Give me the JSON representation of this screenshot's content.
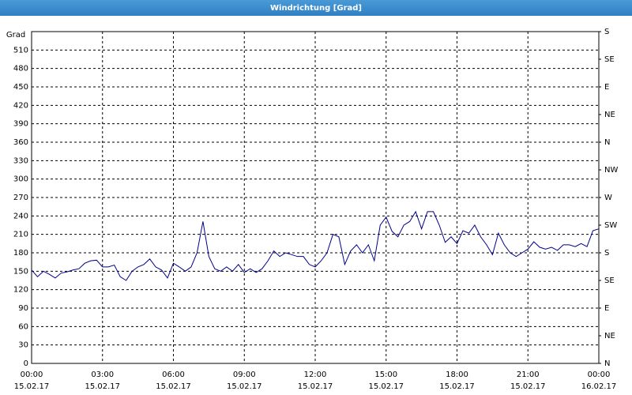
{
  "chart_data": {
    "type": "line",
    "title": "Windrichtung [Grad]",
    "y_label": "Grad",
    "x": [
      0,
      0.25,
      0.5,
      0.75,
      1,
      1.25,
      1.5,
      1.75,
      2,
      2.25,
      2.5,
      2.75,
      3,
      3.25,
      3.5,
      3.75,
      4,
      4.25,
      4.5,
      4.75,
      5,
      5.25,
      5.5,
      5.75,
      6,
      6.25,
      6.5,
      6.75,
      7,
      7.25,
      7.5,
      7.75,
      8,
      8.25,
      8.5,
      8.75,
      9,
      9.25,
      9.5,
      9.75,
      10,
      10.25,
      10.5,
      10.75,
      11,
      11.25,
      11.5,
      11.75,
      12,
      12.25,
      12.5,
      12.75,
      13,
      13.25,
      13.5,
      13.75,
      14,
      14.25,
      14.5,
      14.75,
      15,
      15.25,
      15.5,
      15.75,
      16,
      16.25,
      16.5,
      16.75,
      17,
      17.25,
      17.5,
      17.75,
      18,
      18.25,
      18.5,
      18.75,
      19,
      19.25,
      19.5,
      19.75,
      20,
      20.25,
      20.5,
      20.75,
      21,
      21.25,
      21.5,
      21.75,
      22,
      22.25,
      22.5,
      22.75,
      23,
      23.25,
      23.5,
      23.75,
      24
    ],
    "series": [
      {
        "color": "#00008b",
        "values": [
          152,
          141,
          150,
          145,
          139,
          147,
          149,
          152,
          154,
          163,
          167,
          168,
          157,
          157,
          160,
          141,
          135,
          150,
          157,
          161,
          170,
          157,
          152,
          139,
          163,
          157,
          150,
          157,
          180,
          231,
          174,
          154,
          150,
          157,
          150,
          161,
          148,
          154,
          148,
          154,
          167,
          183,
          174,
          180,
          177,
          174,
          174,
          161,
          157,
          167,
          180,
          210,
          206,
          161,
          183,
          193,
          180,
          193,
          167,
          225,
          238,
          215,
          206,
          225,
          231,
          247,
          219,
          247,
          247,
          225,
          197,
          206,
          195,
          216,
          212,
          225,
          206,
          193,
          177,
          212,
          193,
          180,
          174,
          180,
          186,
          198,
          189,
          186,
          189,
          184,
          193,
          193,
          190,
          195,
          190,
          216,
          219
        ]
      }
    ],
    "xlim": [
      0,
      24
    ],
    "xticks": [
      {
        "value": 0,
        "label": "00:00"
      },
      {
        "value": 3,
        "label": "03:00"
      },
      {
        "value": 6,
        "label": "06:00"
      },
      {
        "value": 9,
        "label": "09:00"
      },
      {
        "value": 12,
        "label": "12:00"
      },
      {
        "value": 15,
        "label": "15:00"
      },
      {
        "value": 18,
        "label": "18:00"
      },
      {
        "value": 21,
        "label": "21:00"
      },
      {
        "value": 24,
        "label": "00:00"
      }
    ],
    "xtick_dates": [
      "15.02.17",
      "15.02.17",
      "15.02.17",
      "15.02.17",
      "15.02.17",
      "15.02.17",
      "15.02.17",
      "15.02.17",
      "16.02.17"
    ],
    "ylim": [
      0,
      540
    ],
    "yticks": [
      0,
      30,
      60,
      90,
      120,
      150,
      180,
      210,
      240,
      270,
      300,
      330,
      360,
      390,
      420,
      450,
      480,
      510
    ],
    "y2lim": [
      0,
      540
    ],
    "y2ticks": [
      {
        "value": 0,
        "label": "N"
      },
      {
        "value": 45,
        "label": "NE"
      },
      {
        "value": 90,
        "label": "E"
      },
      {
        "value": 135,
        "label": "SE"
      },
      {
        "value": 180,
        "label": "S"
      },
      {
        "value": 225,
        "label": "SW"
      },
      {
        "value": 270,
        "label": "W"
      },
      {
        "value": 315,
        "label": "NW"
      },
      {
        "value": 360,
        "label": "N"
      },
      {
        "value": 405,
        "label": "NE"
      },
      {
        "value": 450,
        "label": "E"
      },
      {
        "value": 495,
        "label": "SE"
      },
      {
        "value": 540,
        "label": "S"
      }
    ],
    "grid": true
  }
}
